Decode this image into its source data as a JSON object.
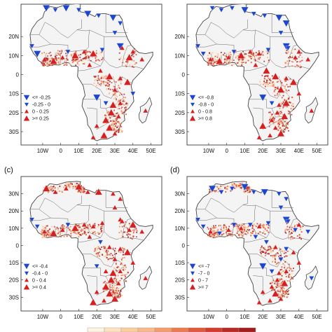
{
  "colors": {
    "up": "#d42020",
    "down": "#1d46d0",
    "land": "#f4f4f4",
    "border": "#444444",
    "shade": [
      "#fde3c0",
      "#f9b98a",
      "#ee7a4e",
      "#d53a2b",
      "#a51b1b"
    ]
  },
  "panels": [
    {
      "id": "a",
      "label": "",
      "lat_labels": [
        "20N",
        "10N",
        "0",
        "10S",
        "20S",
        "30S"
      ],
      "lon_labels": [
        "10W",
        "0",
        "10E",
        "20E",
        "30E",
        "40E",
        "50E"
      ],
      "legend": [
        "<= -0.25",
        "-0.25 - 0",
        "0 - 0.25",
        ">= 0.25"
      ],
      "stations": [
        {
          "lon": -8,
          "lat": 35,
          "v": -2
        },
        {
          "lon": -3,
          "lat": 34,
          "v": -1
        },
        {
          "lon": 3,
          "lat": 35,
          "v": -2
        },
        {
          "lon": 10,
          "lat": 34,
          "v": -1
        },
        {
          "lon": 15,
          "lat": 32,
          "v": -2
        },
        {
          "lon": 21,
          "lat": 31,
          "v": -1
        },
        {
          "lon": 29,
          "lat": 30,
          "v": -2
        },
        {
          "lon": 33,
          "lat": 27,
          "v": -1
        },
        {
          "lon": 30,
          "lat": 22,
          "v": -1
        },
        {
          "lon": 33,
          "lat": 15,
          "v": -2
        },
        {
          "lon": 38,
          "lat": 9,
          "v": 2
        },
        {
          "lon": 34,
          "lat": 14,
          "v": 1
        },
        {
          "lon": 40,
          "lat": 12,
          "v": 1
        },
        {
          "lon": 45,
          "lat": 8,
          "v": 1
        },
        {
          "lon": -16,
          "lat": 15,
          "v": -1
        },
        {
          "lon": -13,
          "lat": 11,
          "v": -2
        },
        {
          "lon": -9,
          "lat": 8,
          "v": 1
        },
        {
          "lon": -4,
          "lat": 7,
          "v": 2
        },
        {
          "lon": 1,
          "lat": 9,
          "v": 1
        },
        {
          "lon": 4,
          "lat": 12,
          "v": -1
        },
        {
          "lon": 8,
          "lat": 10,
          "v": 2
        },
        {
          "lon": 13,
          "lat": 12,
          "v": 1
        },
        {
          "lon": 18,
          "lat": 11,
          "v": 2
        },
        {
          "lon": 23,
          "lat": 13,
          "v": -1
        },
        {
          "lon": 16,
          "lat": 5,
          "v": 1
        },
        {
          "lon": 22,
          "lat": 2,
          "v": 1
        },
        {
          "lon": 27,
          "lat": -1,
          "v": 2
        },
        {
          "lon": 33,
          "lat": -2,
          "v": 1
        },
        {
          "lon": 37,
          "lat": -4,
          "v": 2
        },
        {
          "lon": 30,
          "lat": -8,
          "v": 1
        },
        {
          "lon": 20,
          "lat": -12,
          "v": -2
        },
        {
          "lon": 25,
          "lat": -15,
          "v": -1
        },
        {
          "lon": 29,
          "lat": -16,
          "v": 2
        },
        {
          "lon": 33,
          "lat": -15,
          "v": 1
        },
        {
          "lon": 28,
          "lat": -20,
          "v": 2
        },
        {
          "lon": 32,
          "lat": -22,
          "v": 1
        },
        {
          "lon": 25,
          "lat": -24,
          "v": 2
        },
        {
          "lon": 20,
          "lat": -27,
          "v": 1
        },
        {
          "lon": 27,
          "lat": -28,
          "v": 2
        },
        {
          "lon": 30,
          "lat": -31,
          "v": 1
        },
        {
          "lon": 24,
          "lat": -32,
          "v": 2
        },
        {
          "lon": 18,
          "lat": -33,
          "v": 1
        },
        {
          "lon": 47,
          "lat": -19,
          "v": 1
        },
        {
          "lon": 40,
          "lat": -10,
          "v": -1
        }
      ]
    },
    {
      "id": "b",
      "label": "",
      "lat_labels": [
        "20N",
        "10N",
        "0",
        "10S",
        "20S",
        "30S"
      ],
      "lon_labels": [
        "10W",
        "0",
        "10E",
        "20E",
        "30E",
        "40E",
        "50E"
      ],
      "legend": [
        "<= -0.8",
        "-0.8 - 0",
        "0 - 0.8",
        ">= 0.8"
      ],
      "stations": [
        {
          "lon": -8,
          "lat": 35,
          "v": -1
        },
        {
          "lon": -3,
          "lat": 34,
          "v": -1
        },
        {
          "lon": 3,
          "lat": 35,
          "v": -1
        },
        {
          "lon": 10,
          "lat": 34,
          "v": -2
        },
        {
          "lon": 15,
          "lat": 32,
          "v": -1
        },
        {
          "lon": 21,
          "lat": 31,
          "v": -1
        },
        {
          "lon": 29,
          "lat": 30,
          "v": -2
        },
        {
          "lon": 33,
          "lat": 27,
          "v": -2
        },
        {
          "lon": 30,
          "lat": 22,
          "v": -1
        },
        {
          "lon": 33,
          "lat": 15,
          "v": -2
        },
        {
          "lon": 38,
          "lat": 9,
          "v": 1
        },
        {
          "lon": 34,
          "lat": 14,
          "v": -1
        },
        {
          "lon": 40,
          "lat": 12,
          "v": 1
        },
        {
          "lon": 45,
          "lat": 8,
          "v": 1
        },
        {
          "lon": -16,
          "lat": 15,
          "v": -1
        },
        {
          "lon": -13,
          "lat": 11,
          "v": -1
        },
        {
          "lon": -9,
          "lat": 8,
          "v": 1
        },
        {
          "lon": -4,
          "lat": 7,
          "v": 2
        },
        {
          "lon": 1,
          "lat": 9,
          "v": 1
        },
        {
          "lon": 4,
          "lat": 12,
          "v": -1
        },
        {
          "lon": 8,
          "lat": 10,
          "v": 2
        },
        {
          "lon": 13,
          "lat": 12,
          "v": 1
        },
        {
          "lon": 18,
          "lat": 11,
          "v": 1
        },
        {
          "lon": 23,
          "lat": 13,
          "v": -1
        },
        {
          "lon": 16,
          "lat": 5,
          "v": 1
        },
        {
          "lon": 22,
          "lat": 2,
          "v": 2
        },
        {
          "lon": 27,
          "lat": -1,
          "v": 2
        },
        {
          "lon": 33,
          "lat": -2,
          "v": 1
        },
        {
          "lon": 37,
          "lat": -4,
          "v": 2
        },
        {
          "lon": 30,
          "lat": -8,
          "v": 2
        },
        {
          "lon": 20,
          "lat": -12,
          "v": -2
        },
        {
          "lon": 25,
          "lat": -15,
          "v": -1
        },
        {
          "lon": 29,
          "lat": -16,
          "v": 1
        },
        {
          "lon": 33,
          "lat": -15,
          "v": 2
        },
        {
          "lon": 28,
          "lat": -20,
          "v": 1
        },
        {
          "lon": 32,
          "lat": -22,
          "v": 2
        },
        {
          "lon": 25,
          "lat": -24,
          "v": 1
        },
        {
          "lon": 20,
          "lat": -27,
          "v": 2
        },
        {
          "lon": 27,
          "lat": -28,
          "v": 1
        },
        {
          "lon": 30,
          "lat": -31,
          "v": 2
        },
        {
          "lon": 24,
          "lat": -32,
          "v": 1
        },
        {
          "lon": 18,
          "lat": -33,
          "v": 1
        },
        {
          "lon": 47,
          "lat": -19,
          "v": 1
        },
        {
          "lon": 40,
          "lat": -10,
          "v": 1
        }
      ]
    },
    {
      "id": "c",
      "label": "(c)",
      "lat_labels": [
        "30N",
        "20N",
        "10N",
        "0",
        "10S",
        "20S",
        "30S"
      ],
      "lon_labels": [
        "10W",
        "0",
        "10E",
        "20E",
        "30E",
        "40E",
        "50E"
      ],
      "legend": [
        "<= -0.4",
        "-0.4 - 0",
        "0 - 0.4",
        ">= 0.4"
      ],
      "stations": [
        {
          "lon": -8,
          "lat": 33,
          "v": 2
        },
        {
          "lon": -3,
          "lat": 31,
          "v": 1
        },
        {
          "lon": 3,
          "lat": 33,
          "v": 1
        },
        {
          "lon": 10,
          "lat": 34,
          "v": 2
        },
        {
          "lon": 15,
          "lat": 31,
          "v": 1
        },
        {
          "lon": 21,
          "lat": 31,
          "v": 2
        },
        {
          "lon": 29,
          "lat": 30,
          "v": 1
        },
        {
          "lon": 33,
          "lat": 27,
          "v": 1
        },
        {
          "lon": 30,
          "lat": 22,
          "v": 1
        },
        {
          "lon": 33,
          "lat": 15,
          "v": 1
        },
        {
          "lon": 38,
          "lat": 9,
          "v": 1
        },
        {
          "lon": 34,
          "lat": 14,
          "v": 1
        },
        {
          "lon": 40,
          "lat": 12,
          "v": 2
        },
        {
          "lon": 45,
          "lat": 8,
          "v": 1
        },
        {
          "lon": -16,
          "lat": 15,
          "v": -1
        },
        {
          "lon": -13,
          "lat": 11,
          "v": -1
        },
        {
          "lon": -9,
          "lat": 8,
          "v": 1
        },
        {
          "lon": -4,
          "lat": 7,
          "v": 2
        },
        {
          "lon": 1,
          "lat": 9,
          "v": 1
        },
        {
          "lon": 4,
          "lat": 12,
          "v": -1
        },
        {
          "lon": 8,
          "lat": 10,
          "v": 2
        },
        {
          "lon": 13,
          "lat": 12,
          "v": 1
        },
        {
          "lon": 18,
          "lat": 11,
          "v": 1
        },
        {
          "lon": 23,
          "lat": 13,
          "v": 1
        },
        {
          "lon": 16,
          "lat": 5,
          "v": 1
        },
        {
          "lon": 22,
          "lat": 2,
          "v": -1
        },
        {
          "lon": 27,
          "lat": -1,
          "v": 1
        },
        {
          "lon": 33,
          "lat": -2,
          "v": 1
        },
        {
          "lon": 37,
          "lat": -4,
          "v": 2
        },
        {
          "lon": 30,
          "lat": -8,
          "v": 1
        },
        {
          "lon": 20,
          "lat": -12,
          "v": -1
        },
        {
          "lon": 25,
          "lat": -15,
          "v": 1
        },
        {
          "lon": 29,
          "lat": -16,
          "v": 2
        },
        {
          "lon": 33,
          "lat": -15,
          "v": 1
        },
        {
          "lon": 28,
          "lat": -20,
          "v": 2
        },
        {
          "lon": 32,
          "lat": -22,
          "v": 1
        },
        {
          "lon": 25,
          "lat": -24,
          "v": 2
        },
        {
          "lon": 20,
          "lat": -27,
          "v": 1
        },
        {
          "lon": 27,
          "lat": -28,
          "v": 2
        },
        {
          "lon": 30,
          "lat": -31,
          "v": 2
        },
        {
          "lon": 24,
          "lat": -32,
          "v": 1
        },
        {
          "lon": 18,
          "lat": -33,
          "v": 2
        },
        {
          "lon": 47,
          "lat": -19,
          "v": 1
        },
        {
          "lon": 40,
          "lat": -10,
          "v": 1
        }
      ]
    },
    {
      "id": "d",
      "label": "(d)",
      "lat_labels": [
        "30N",
        "20N",
        "10N",
        "0",
        "10S",
        "20S",
        "30S"
      ],
      "lon_labels": [
        "10W",
        "0",
        "10E",
        "20E",
        "30E",
        "40E",
        "50E"
      ],
      "legend": [
        "<= -7",
        "-7 - 0",
        "0 - 7",
        ">= 7"
      ],
      "stations": [
        {
          "lon": -8,
          "lat": 33,
          "v": -2
        },
        {
          "lon": -3,
          "lat": 31,
          "v": -1
        },
        {
          "lon": 3,
          "lat": 33,
          "v": -1
        },
        {
          "lon": 10,
          "lat": 34,
          "v": -2
        },
        {
          "lon": 15,
          "lat": 31,
          "v": -1
        },
        {
          "lon": 21,
          "lat": 31,
          "v": -2
        },
        {
          "lon": 29,
          "lat": 30,
          "v": -1
        },
        {
          "lon": 33,
          "lat": 27,
          "v": -1
        },
        {
          "lon": 30,
          "lat": 22,
          "v": -1
        },
        {
          "lon": 33,
          "lat": 15,
          "v": -2
        },
        {
          "lon": 38,
          "lat": 9,
          "v": -1
        },
        {
          "lon": 34,
          "lat": 14,
          "v": -1
        },
        {
          "lon": 40,
          "lat": 12,
          "v": 1
        },
        {
          "lon": 45,
          "lat": 8,
          "v": -1
        },
        {
          "lon": -16,
          "lat": 15,
          "v": -1
        },
        {
          "lon": -13,
          "lat": 11,
          "v": -1
        },
        {
          "lon": -9,
          "lat": 8,
          "v": 1
        },
        {
          "lon": -4,
          "lat": 7,
          "v": -1
        },
        {
          "lon": 1,
          "lat": 9,
          "v": 1
        },
        {
          "lon": 4,
          "lat": 12,
          "v": -1
        },
        {
          "lon": 8,
          "lat": 10,
          "v": 1
        },
        {
          "lon": 13,
          "lat": 12,
          "v": -1
        },
        {
          "lon": 18,
          "lat": 11,
          "v": 1
        },
        {
          "lon": 23,
          "lat": 13,
          "v": -1
        },
        {
          "lon": 16,
          "lat": 5,
          "v": -1
        },
        {
          "lon": 22,
          "lat": 2,
          "v": -1
        },
        {
          "lon": 27,
          "lat": -1,
          "v": 1
        },
        {
          "lon": 33,
          "lat": -2,
          "v": -1
        },
        {
          "lon": 37,
          "lat": -4,
          "v": 1
        },
        {
          "lon": 30,
          "lat": -8,
          "v": -1
        },
        {
          "lon": 20,
          "lat": -12,
          "v": -2
        },
        {
          "lon": 25,
          "lat": -15,
          "v": -1
        },
        {
          "lon": 29,
          "lat": -16,
          "v": 1
        },
        {
          "lon": 33,
          "lat": -15,
          "v": 1
        },
        {
          "lon": 28,
          "lat": -20,
          "v": 1
        },
        {
          "lon": 32,
          "lat": -22,
          "v": 2
        },
        {
          "lon": 25,
          "lat": -24,
          "v": 1
        },
        {
          "lon": 20,
          "lat": -27,
          "v": 1
        },
        {
          "lon": 27,
          "lat": -28,
          "v": 2
        },
        {
          "lon": 30,
          "lat": -31,
          "v": 1
        },
        {
          "lon": 24,
          "lat": -32,
          "v": 1
        },
        {
          "lon": 18,
          "lat": -33,
          "v": 1
        },
        {
          "lon": 47,
          "lat": -19,
          "v": -1
        },
        {
          "lon": 40,
          "lat": -10,
          "v": 1
        }
      ]
    }
  ]
}
